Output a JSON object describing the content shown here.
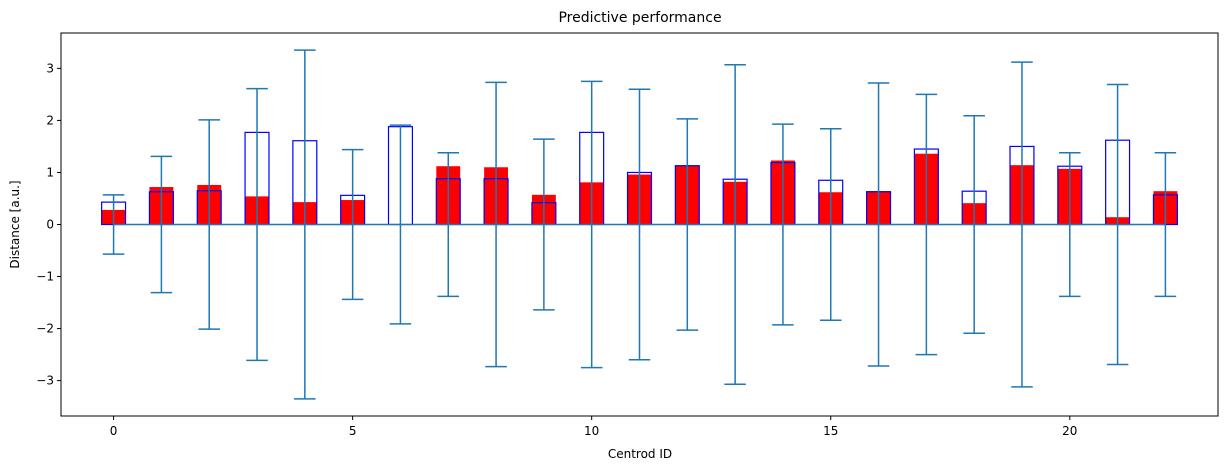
{
  "chart_data": {
    "type": "bar",
    "title": "Predictive performance",
    "xlabel": "Centrod ID",
    "ylabel": "Distance [a.u.]",
    "xlim": [
      -1.1,
      23.1
    ],
    "ylim": [
      -3.68,
      3.68
    ],
    "xticks": [
      0,
      5,
      10,
      15,
      20
    ],
    "yticks": [
      -3,
      -2,
      -1,
      0,
      1,
      2,
      3
    ],
    "grid": false,
    "x": [
      0,
      1,
      2,
      3,
      4,
      5,
      6,
      7,
      8,
      9,
      10,
      11,
      12,
      13,
      14,
      15,
      16,
      17,
      18,
      19,
      20,
      21,
      22
    ],
    "series": [
      {
        "style": "filled",
        "color": "#ff0000",
        "values": [
          0.28,
          0.72,
          0.76,
          0.54,
          0.43,
          0.47,
          0.0,
          1.12,
          1.1,
          0.57,
          0.81,
          0.96,
          1.13,
          0.82,
          1.23,
          0.62,
          0.64,
          1.36,
          0.41,
          1.14,
          1.07,
          0.14,
          0.64
        ]
      },
      {
        "style": "outline",
        "color": "#0000ff",
        "values": [
          0.43,
          0.63,
          0.65,
          1.77,
          1.61,
          0.56,
          1.88,
          0.88,
          0.88,
          0.42,
          1.77,
          1.0,
          1.13,
          0.87,
          1.19,
          0.85,
          0.63,
          1.45,
          0.64,
          1.5,
          1.12,
          1.62,
          0.57
        ]
      },
      {
        "style": "errorbar",
        "color": "#1f77b4",
        "values": [
          0.57,
          1.31,
          2.01,
          2.61,
          3.35,
          1.44,
          1.91,
          1.38,
          2.73,
          1.64,
          2.75,
          2.6,
          2.03,
          3.07,
          1.93,
          1.84,
          2.72,
          2.5,
          2.09,
          3.12,
          1.38,
          2.69,
          1.38
        ]
      }
    ]
  }
}
